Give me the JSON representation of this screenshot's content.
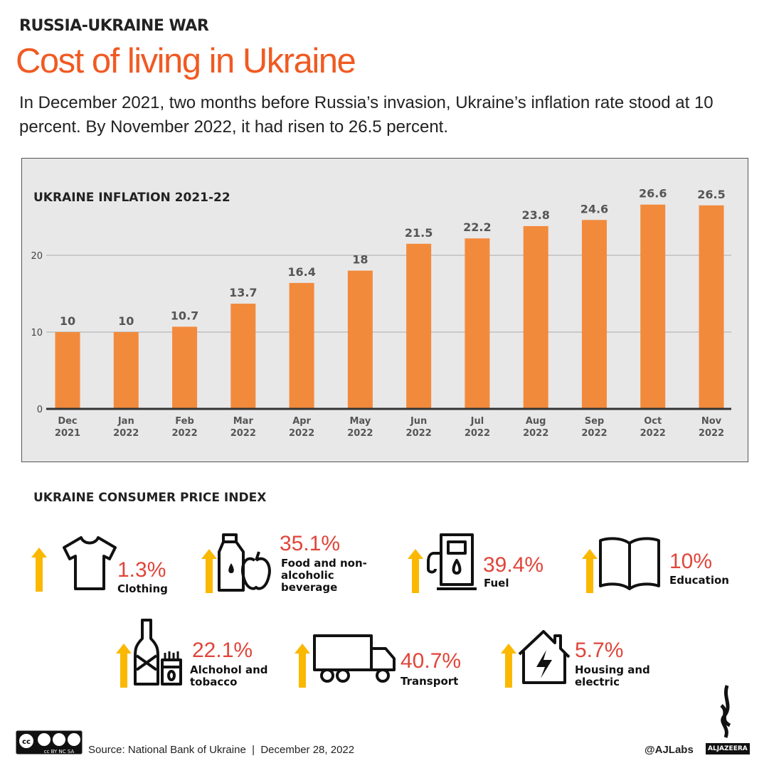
{
  "header": {
    "kicker": "RUSSIA-UKRAINE WAR",
    "title": "Cost of living in Ukraine",
    "subtitle": "In December 2021, two months before Russia’s invasion, Ukraine’s inflation rate stood at 10 percent. By November 2022, it had risen to 26.5 percent."
  },
  "colors": {
    "accent": "#f05a22",
    "bar": "#f28a3c",
    "arrow": "#fbb800",
    "pct": "#e0453a"
  },
  "chart_data": {
    "type": "bar",
    "title": "UKRAINE INFLATION 2021-22",
    "categories": [
      [
        "Dec",
        "2021"
      ],
      [
        "Jan",
        "2022"
      ],
      [
        "Feb",
        "2022"
      ],
      [
        "Mar",
        "2022"
      ],
      [
        "Apr",
        "2022"
      ],
      [
        "May",
        "2022"
      ],
      [
        "Jun",
        "2022"
      ],
      [
        "Jul",
        "2022"
      ],
      [
        "Aug",
        "2022"
      ],
      [
        "Sep",
        "2022"
      ],
      [
        "Oct",
        "2022"
      ],
      [
        "Nov",
        "2022"
      ]
    ],
    "values": [
      10,
      10,
      10.7,
      13.7,
      16.4,
      18,
      21.5,
      22.2,
      23.8,
      24.6,
      26.6,
      26.5
    ],
    "yticks": [
      0,
      10,
      20
    ],
    "ylim": [
      0,
      30
    ],
    "grid": true
  },
  "cpi": {
    "title": "UKRAINE CONSUMER PRICE INDEX",
    "items": [
      {
        "icon": "shirt-icon",
        "pct": "1.3%",
        "label": "Clothing"
      },
      {
        "icon": "bottle-apple-icon",
        "pct": "35.1%",
        "label": "Food and non-alcoholic beverage"
      },
      {
        "icon": "fuel-pump-icon",
        "pct": "39.4%",
        "label": "Fuel"
      },
      {
        "icon": "book-icon",
        "pct": "10%",
        "label": "Education"
      },
      {
        "icon": "wine-cigarettes-icon",
        "pct": "22.1%",
        "label": "Alchohol and tobacco"
      },
      {
        "icon": "truck-icon",
        "pct": "40.7%",
        "label": "Transport"
      },
      {
        "icon": "house-bolt-icon",
        "pct": "5.7%",
        "label": "Housing and electric"
      }
    ]
  },
  "footer": {
    "license": "cc BY NC SA",
    "source": "Source: National Bank of Ukraine  |  December 28, 2022",
    "handle": "@AJLabs",
    "brand": "ALJAZEERA"
  }
}
